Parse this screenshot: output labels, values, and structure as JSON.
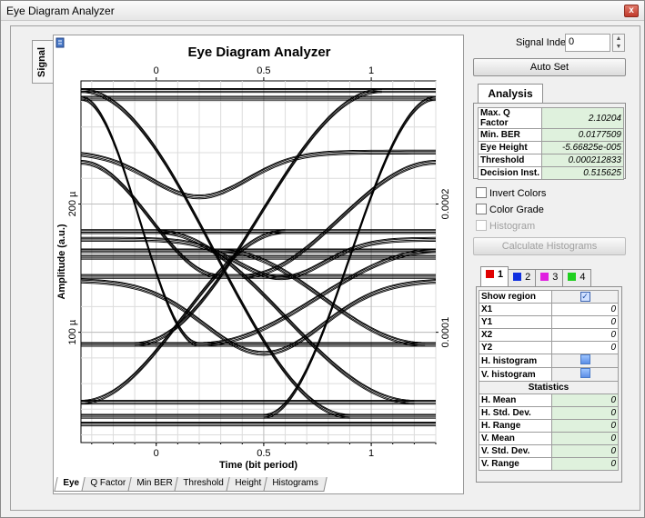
{
  "window": {
    "title": "Eye Diagram Analyzer",
    "close_glyph": "x"
  },
  "side_tab": {
    "label": "Signal"
  },
  "chart_data": {
    "type": "line",
    "title": "Eye Diagram Analyzer",
    "xlabel": "Time (bit period)",
    "ylabel": "Amplitude (a.u.)",
    "xlim": [
      -0.35,
      1.3
    ],
    "ylim": [
      1.4e-05,
      0.000296
    ],
    "x_ticks": [
      "0",
      "0.5",
      "1"
    ],
    "y_left_ticks": [
      "100 µ",
      "200 µ"
    ],
    "y_right_ticks": [
      "0.0001",
      "0.0002"
    ],
    "grid": true,
    "series_note": "overlaid bit-period traces",
    "levels": [
      2.8e-05,
      3.4e-05,
      4.5e-05,
      9e-05,
      0.000143,
      0.000158,
      0.000163,
      0.000178,
      0.000282,
      0.000288
    ],
    "transitions": [
      {
        "from": 0.000288,
        "to": 3.4e-05,
        "start": -0.35,
        "end": 0.9
      },
      {
        "from": 0.000282,
        "to": 9e-05,
        "start": -0.35,
        "end": 0.2
      },
      {
        "from": 9e-05,
        "to": 0.000288,
        "start": -0.1,
        "end": 1.05
      },
      {
        "from": 3.4e-05,
        "to": 0.000282,
        "start": 0.5,
        "end": 1.3
      },
      {
        "from": 0.000178,
        "to": 4.5e-05,
        "start": 0.0,
        "end": 1.2
      },
      {
        "from": 4.5e-05,
        "to": 0.000178,
        "start": -0.35,
        "end": 0.6
      },
      {
        "from": 0.000163,
        "to": 9e-05,
        "start": 0.3,
        "end": 1.25
      },
      {
        "from": 9e-05,
        "to": 0.000163,
        "start": 0.2,
        "end": 1.3
      },
      {
        "from": 0.000143,
        "to": 0.000232,
        "start": 0.4,
        "end": 1.3
      },
      {
        "from": 0.000232,
        "to": 0.000143,
        "start": -0.35,
        "end": 0.3
      }
    ],
    "dips": [
      {
        "level": 0.00014,
        "depth": 5.7e-05,
        "center": 0.5,
        "width": 0.55
      },
      {
        "level": 0.00024,
        "depth": 3.5e-05,
        "center": 0.2,
        "width": 0.45
      },
      {
        "level": 0.000172,
        "depth": 3e-05,
        "center": 0.58,
        "width": 0.4
      }
    ]
  },
  "bottom_tabs": [
    "Eye",
    "Q Factor",
    "Min BER",
    "Threshold",
    "Height",
    "Histograms"
  ],
  "right": {
    "signal_index_label": "Signal Index:",
    "signal_index_value": "0",
    "autoset_label": "Auto Set",
    "analysis_tab": "Analysis",
    "analysis": [
      {
        "key": "Max. Q Factor",
        "value": "2.10204"
      },
      {
        "key": "Min. BER",
        "value": "0.0177509"
      },
      {
        "key": "Eye Height",
        "value": "-5.66825e-005"
      },
      {
        "key": "Threshold",
        "value": "0.000212833"
      },
      {
        "key": "Decision Inst.",
        "value": "0.515625"
      }
    ],
    "invert_colors": "Invert Colors",
    "color_grade": "Color Grade",
    "histogram": "Histogram",
    "calc_histograms": "Calculate Histograms",
    "channel_tabs": [
      {
        "label": "1",
        "color": "#e00000"
      },
      {
        "label": "2",
        "color": "#1030e0"
      },
      {
        "label": "3",
        "color": "#e020e0"
      },
      {
        "label": "4",
        "color": "#20d020"
      }
    ],
    "region": {
      "show_region": "Show region",
      "x1": "X1",
      "x1_v": "0",
      "y1": "Y1",
      "y1_v": "0",
      "x2": "X2",
      "x2_v": "0",
      "y2": "Y2",
      "y2_v": "0",
      "h_hist": "H. histogram",
      "v_hist": "V. histogram",
      "statistics": "Statistics",
      "stats": [
        {
          "key": "H. Mean",
          "value": "0"
        },
        {
          "key": "H. Std. Dev.",
          "value": "0"
        },
        {
          "key": "H. Range",
          "value": "0"
        },
        {
          "key": "V. Mean",
          "value": "0"
        },
        {
          "key": "V. Std. Dev.",
          "value": "0"
        },
        {
          "key": "V. Range",
          "value": "0"
        }
      ]
    }
  }
}
